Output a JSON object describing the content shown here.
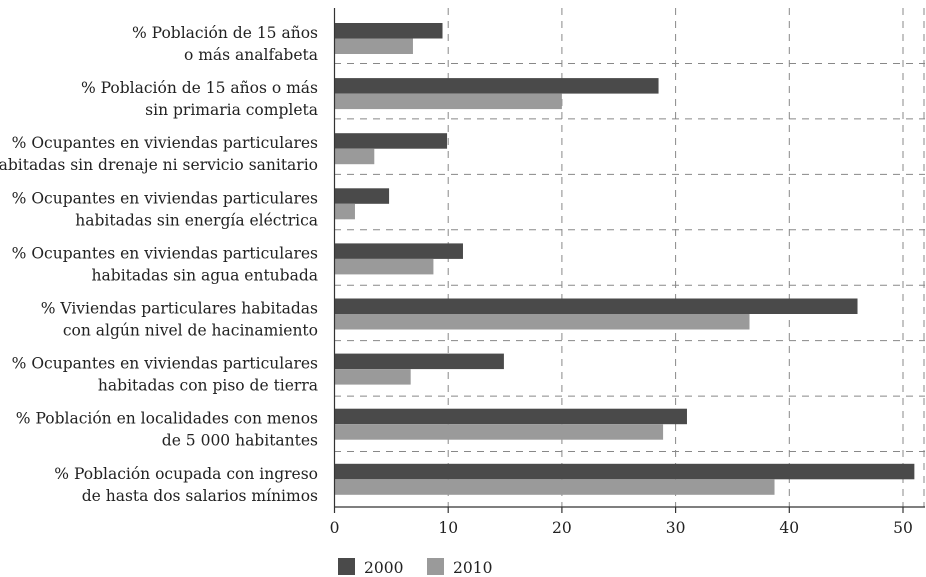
{
  "chart_data": {
    "type": "bar",
    "orientation": "horizontal",
    "categories": [
      [
        "% Población de 15 años",
        "o más analfabeta"
      ],
      [
        "% Población de 15 años o más",
        "sin primaria completa"
      ],
      [
        "% Ocupantes en viviendas particulares",
        "habitadas sin drenaje ni servicio sanitario"
      ],
      [
        "% Ocupantes en viviendas particulares",
        "habitadas sin energía eléctrica"
      ],
      [
        "% Ocupantes en viviendas particulares",
        "habitadas sin agua entubada"
      ],
      [
        "% Viviendas particulares habitadas",
        "con algún nivel de hacinamiento"
      ],
      [
        "% Ocupantes en viviendas particulares",
        "habitadas con piso de tierra"
      ],
      [
        "% Población en localidades con menos",
        "de 5 000 habitantes"
      ],
      [
        "% Población ocupada con ingreso",
        "de hasta dos salarios mínimos"
      ]
    ],
    "series": [
      {
        "name": "2000",
        "color": "#4a4a4a",
        "values": [
          9.5,
          28.5,
          9.9,
          4.8,
          11.3,
          46.0,
          14.9,
          31.0,
          51.0
        ]
      },
      {
        "name": "2010",
        "color": "#9a9a9a",
        "values": [
          6.9,
          20.0,
          3.5,
          1.8,
          8.7,
          36.5,
          6.7,
          28.9,
          38.7
        ]
      }
    ],
    "xlim": [
      0,
      52
    ],
    "xticks": [
      0,
      10,
      20,
      30,
      40,
      50
    ],
    "grid": true,
    "legend": "bottom-left"
  }
}
